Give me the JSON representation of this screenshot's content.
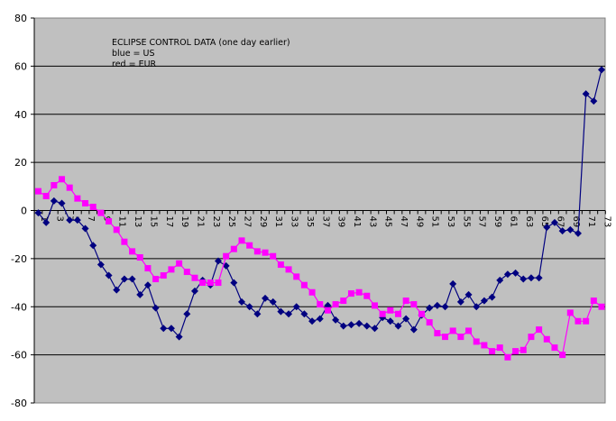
{
  "chart_data": {
    "type": "line",
    "title": "",
    "xlabel": "",
    "ylabel": "",
    "annotation_lines": [
      "ECLIPSE CONTROL DATA (one day earlier)",
      "blue = US",
      "red = EUR"
    ],
    "ylim": [
      -80,
      80
    ],
    "yticks": [
      80,
      60,
      40,
      20,
      0,
      -20,
      -40,
      -60,
      -80
    ],
    "xlim": [
      1,
      73
    ],
    "xtick_labels": [
      "1",
      "3",
      "5",
      "7",
      "9",
      "11",
      "13",
      "15",
      "17",
      "19",
      "21",
      "23",
      "25",
      "27",
      "29",
      "31",
      "33",
      "35",
      "37",
      "39",
      "41",
      "43",
      "45",
      "47",
      "49",
      "51",
      "53",
      "55",
      "57",
      "59",
      "61",
      "63",
      "65",
      "67",
      "69",
      "71",
      "73"
    ],
    "grid": true,
    "legend": "none (annotation text inside plot)",
    "plot_background": "#c0c0c0",
    "x": [
      1,
      2,
      3,
      4,
      5,
      6,
      7,
      8,
      9,
      10,
      11,
      12,
      13,
      14,
      15,
      16,
      17,
      18,
      19,
      20,
      21,
      22,
      23,
      24,
      25,
      26,
      27,
      28,
      29,
      30,
      31,
      32,
      33,
      34,
      35,
      36,
      37,
      38,
      39,
      40,
      41,
      42,
      43,
      44,
      45,
      46,
      47,
      48,
      49,
      50,
      51,
      52,
      53,
      54,
      55,
      56,
      57,
      58,
      59,
      60,
      61,
      62,
      63,
      64,
      65,
      66,
      67,
      68,
      69,
      70,
      71,
      72,
      73
    ],
    "series": [
      {
        "name": "US",
        "color": "#000080",
        "marker": "diamond",
        "values": [
          -1,
          -5,
          4,
          3,
          -4,
          -4,
          -7.5,
          -14.5,
          -22.5,
          -27,
          -33,
          -28.5,
          -28.5,
          -35,
          -31,
          -40.5,
          -49,
          -49,
          -52.5,
          -43,
          -33.5,
          -29,
          -31,
          -21,
          -23,
          -30,
          -38,
          -40,
          -43,
          -36.5,
          -38,
          -42,
          -43,
          -40,
          -43,
          -46,
          -45,
          -39.5,
          -45.5,
          -48,
          -47.5,
          -47,
          -48,
          -49,
          -44.5,
          -46,
          -48,
          -45,
          -49.5,
          -43.5,
          -40.5,
          -39.5,
          -40,
          -30.5,
          -38,
          -35,
          -40,
          -37.5,
          -36,
          -29,
          -26.5,
          -26,
          -28.5,
          -28,
          -28,
          -7,
          -5,
          -8.5,
          -8,
          -9.5,
          48.5,
          45.5,
          58.5
        ]
      },
      {
        "name": "EUR",
        "color": "#ff00ff",
        "marker": "square",
        "values": [
          8,
          6,
          10.5,
          13,
          9.5,
          5,
          3,
          1.5,
          -1,
          -4.5,
          -8,
          -13,
          -17,
          -19.5,
          -24,
          -28.5,
          -27,
          -24.5,
          -22,
          -25.5,
          -28,
          -30,
          -30,
          -30,
          -19,
          -16,
          -12.5,
          -14.5,
          -17,
          -17.5,
          -19,
          -22.5,
          -24.5,
          -27.5,
          -31,
          -34,
          -39,
          -41.5,
          -39,
          -37.5,
          -34.5,
          -34,
          -35.5,
          -39.5,
          -43,
          -41.5,
          -43,
          -37.5,
          -39,
          -43,
          -46.5,
          -51,
          -52.5,
          -50,
          -52.5,
          -50,
          -54.5,
          -56,
          -58.5,
          -57,
          -61,
          -58.5,
          -58,
          -52.5,
          -49.5,
          -53.5,
          -57,
          -60,
          -42.5,
          -46,
          -46,
          -37.5,
          -40
        ]
      }
    ]
  }
}
